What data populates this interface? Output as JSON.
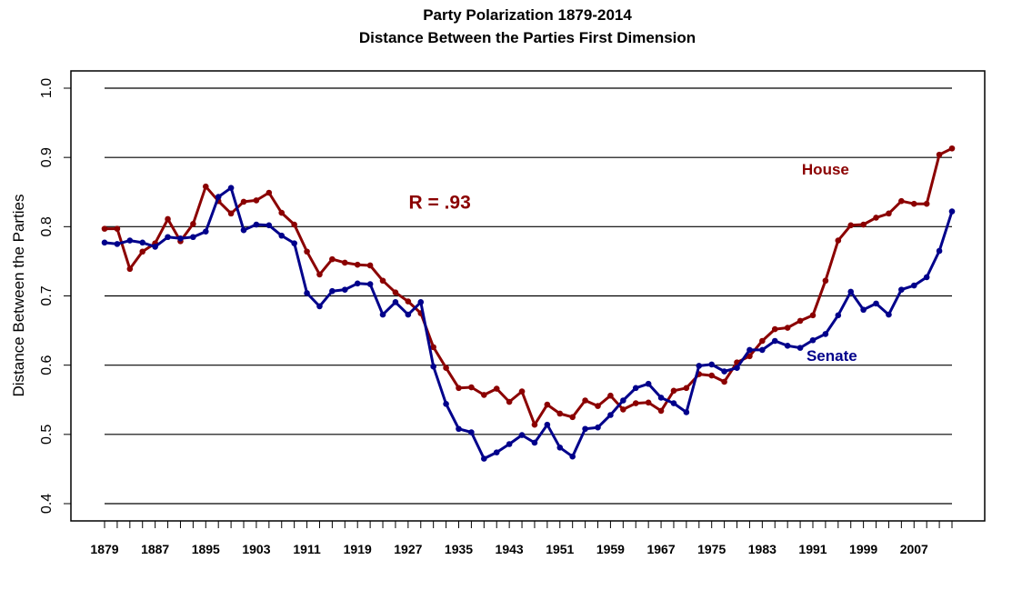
{
  "chart_data": {
    "type": "line",
    "title": "Party Polarization 1879-2014",
    "subtitle": "Distance Between the Parties First Dimension",
    "xlabel": "",
    "ylabel": "Distance Between the Parties",
    "ylim": [
      0.4,
      1.0
    ],
    "yticks": [
      "0.4",
      "0.5",
      "0.6",
      "0.7",
      "0.8",
      "0.9",
      "1.0"
    ],
    "ytick_values": [
      0.4,
      0.5,
      0.6,
      0.7,
      0.8,
      0.9,
      1.0
    ],
    "grid": "horizontal",
    "x": [
      1879,
      1881,
      1883,
      1885,
      1887,
      1889,
      1891,
      1893,
      1895,
      1897,
      1899,
      1901,
      1903,
      1905,
      1907,
      1909,
      1911,
      1913,
      1915,
      1917,
      1919,
      1921,
      1923,
      1925,
      1927,
      1929,
      1931,
      1933,
      1935,
      1937,
      1939,
      1941,
      1943,
      1945,
      1947,
      1949,
      1951,
      1953,
      1955,
      1957,
      1959,
      1961,
      1963,
      1965,
      1967,
      1969,
      1971,
      1973,
      1975,
      1977,
      1979,
      1981,
      1983,
      1985,
      1987,
      1989,
      1991,
      1993,
      1995,
      1997,
      1999,
      2001,
      2003,
      2005,
      2007,
      2009,
      2011,
      2013
    ],
    "xtick_labels": [
      "1879",
      "1887",
      "1895",
      "1903",
      "1911",
      "1919",
      "1927",
      "1935",
      "1943",
      "1951",
      "1959",
      "1967",
      "1975",
      "1983",
      "1991",
      "1999",
      "2007"
    ],
    "series": [
      {
        "name": "House",
        "color": "#8b0000",
        "values": [
          0.797,
          0.797,
          0.739,
          0.764,
          0.776,
          0.811,
          0.779,
          0.804,
          0.858,
          0.837,
          0.819,
          0.836,
          0.838,
          0.849,
          0.82,
          0.803,
          0.764,
          0.731,
          0.753,
          0.748,
          0.745,
          0.744,
          0.722,
          0.705,
          0.692,
          0.675,
          0.626,
          0.596,
          0.567,
          0.568,
          0.557,
          0.566,
          0.547,
          0.562,
          0.514,
          0.543,
          0.53,
          0.525,
          0.549,
          0.541,
          0.556,
          0.536,
          0.545,
          0.546,
          0.534,
          0.563,
          0.567,
          0.587,
          0.585,
          0.576,
          0.604,
          0.613,
          0.635,
          0.652,
          0.654,
          0.664,
          0.672,
          0.722,
          0.78,
          0.802,
          0.803,
          0.813,
          0.819,
          0.837,
          0.833,
          0.833,
          0.904,
          0.913
        ]
      },
      {
        "name": "Senate",
        "color": "#00008b",
        "values": [
          0.777,
          0.775,
          0.78,
          0.777,
          0.771,
          0.785,
          0.783,
          0.785,
          0.793,
          0.843,
          0.856,
          0.795,
          0.803,
          0.802,
          0.787,
          0.776,
          0.704,
          0.685,
          0.707,
          0.709,
          0.718,
          0.717,
          0.673,
          0.691,
          0.673,
          0.691,
          0.598,
          0.544,
          0.508,
          0.503,
          0.465,
          0.474,
          0.486,
          0.499,
          0.488,
          0.514,
          0.481,
          0.468,
          0.508,
          0.51,
          0.528,
          0.549,
          0.567,
          0.573,
          0.553,
          0.545,
          0.532,
          0.599,
          0.601,
          0.591,
          0.596,
          0.622,
          0.622,
          0.635,
          0.628,
          0.625,
          0.636,
          0.645,
          0.672,
          0.706,
          0.68,
          0.689,
          0.673,
          0.709,
          0.715,
          0.727,
          0.765,
          0.822
        ]
      }
    ],
    "annotations": [
      {
        "text": "R = .93",
        "x": 1932,
        "y": 0.826,
        "color": "#8b0000"
      },
      {
        "text": "House",
        "x": 1993,
        "y": 0.875,
        "color": "#8b0000"
      },
      {
        "text": "Senate",
        "x": 1994,
        "y": 0.606,
        "color": "#00008b"
      }
    ]
  }
}
